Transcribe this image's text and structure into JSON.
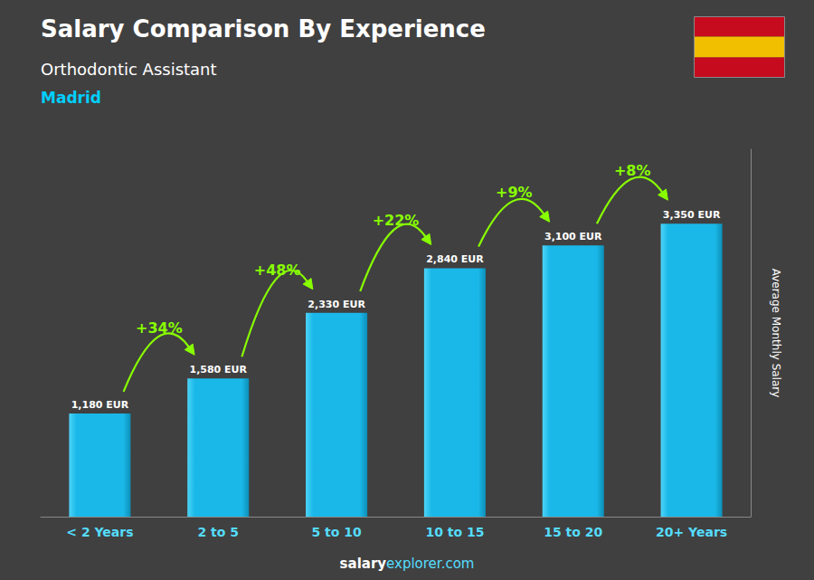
{
  "chart_data": {
    "type": "bar",
    "title": "Salary Comparison By Experience",
    "subtitle": "Orthodontic Assistant",
    "city": "Madrid",
    "ylabel": "Average Monthly Salary",
    "footer": [
      "salary",
      "explorer.com"
    ],
    "categories": [
      "< 2 Years",
      "2 to 5",
      "5 to 10",
      "10 to 15",
      "15 to 20",
      "20+ Years"
    ],
    "values": [
      1180,
      1580,
      2330,
      2840,
      3100,
      3350
    ],
    "value_labels": [
      "1,180 EUR",
      "1,580 EUR",
      "2,330 EUR",
      "2,840 EUR",
      "3,100 EUR",
      "3,350 EUR"
    ],
    "data_labels": true,
    "annotations": [
      "+34%",
      "+48%",
      "+22%",
      "+9%",
      "+8%"
    ],
    "color": "#1ab8e8",
    "ylim": [
      0,
      4200
    ],
    "grid": false,
    "tick_labels": "x"
  }
}
